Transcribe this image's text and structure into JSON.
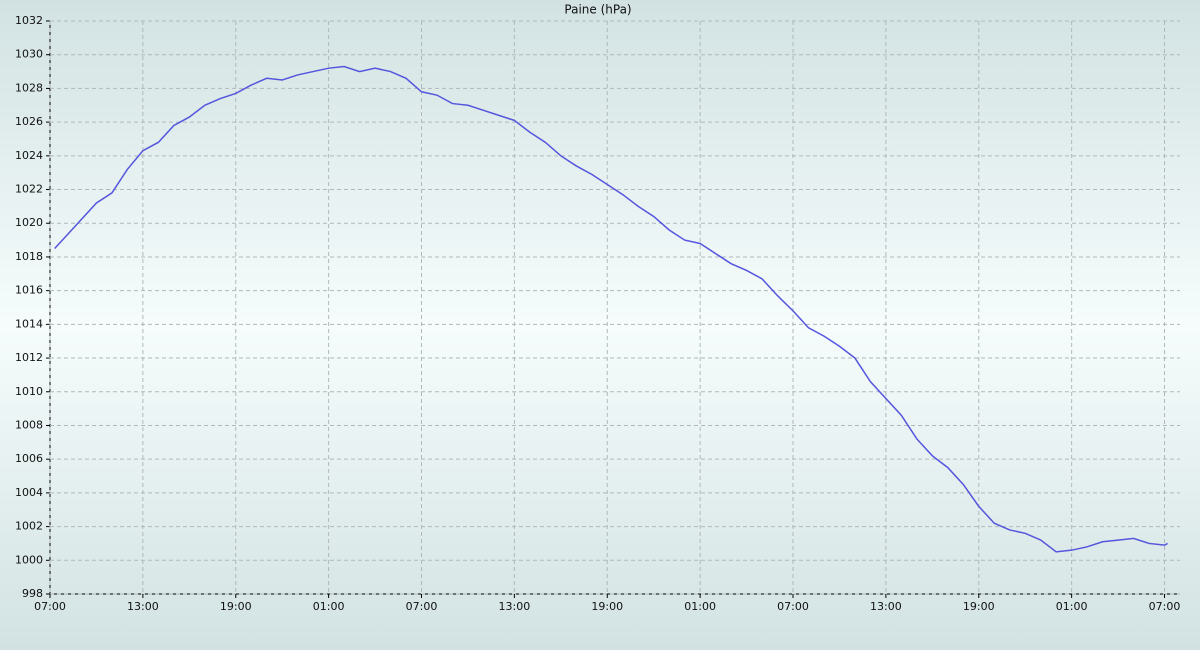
{
  "chart_data": {
    "type": "line",
    "title": "Paine (hPa)",
    "x": [
      0.3,
      1,
      2,
      3,
      4,
      5,
      6,
      7,
      8,
      9,
      10,
      11,
      12,
      13,
      14,
      15,
      16,
      17,
      18,
      19,
      20,
      21,
      22,
      23,
      24,
      25,
      26,
      27,
      28,
      29,
      30,
      31,
      32,
      33,
      34,
      35,
      36,
      37,
      38,
      39,
      40,
      41,
      42,
      43,
      44,
      45,
      46,
      47,
      48,
      49,
      50,
      51,
      52,
      53,
      54,
      55,
      56,
      57,
      58,
      59,
      60,
      61,
      62,
      63,
      64,
      65,
      66,
      67,
      68,
      69,
      70,
      71,
      72,
      72.2
    ],
    "series": [
      {
        "color": "#5555dd",
        "values": [
          1018.5,
          1019.2,
          1020.2,
          1021.2,
          1021.8,
          1023.2,
          1024.3,
          1024.8,
          1025.8,
          1026.3,
          1027.0,
          1027.4,
          1027.7,
          1028.2,
          1028.6,
          1028.5,
          1028.8,
          1029.0,
          1029.2,
          1029.3,
          1029.0,
          1029.2,
          1029.0,
          1028.6,
          1027.8,
          1027.6,
          1027.1,
          1027.0,
          1026.7,
          1026.4,
          1026.1,
          1025.4,
          1024.8,
          1024.0,
          1023.4,
          1022.9,
          1022.3,
          1021.7,
          1021.0,
          1020.4,
          1019.6,
          1019.0,
          1018.8,
          1018.2,
          1017.6,
          1017.2,
          1016.7,
          1015.7,
          1014.8,
          1013.8,
          1013.3,
          1012.7,
          1012.0,
          1010.6,
          1009.6,
          1008.6,
          1007.2,
          1006.2,
          1005.5,
          1004.5,
          1003.2,
          1002.2,
          1001.8,
          1001.6,
          1001.2,
          1000.5,
          1000.6,
          1000.8,
          1001.1,
          1001.2,
          1001.3,
          1001.0,
          1000.9,
          1001.0
        ]
      }
    ],
    "xlim": [
      0,
      73
    ],
    "xticks": [
      {
        "value": 0,
        "label": "07:00"
      },
      {
        "value": 6,
        "label": "13:00"
      },
      {
        "value": 12,
        "label": "19:00"
      },
      {
        "value": 18,
        "label": "01:00"
      },
      {
        "value": 24,
        "label": "07:00"
      },
      {
        "value": 30,
        "label": "13:00"
      },
      {
        "value": 36,
        "label": "19:00"
      },
      {
        "value": 42,
        "label": "01:00"
      },
      {
        "value": 48,
        "label": "07:00"
      },
      {
        "value": 54,
        "label": "13:00"
      },
      {
        "value": 60,
        "label": "19:00"
      },
      {
        "value": 66,
        "label": "01:00"
      },
      {
        "value": 72,
        "label": "07:00"
      }
    ],
    "ylim": [
      998,
      1032
    ],
    "yticks": [
      998,
      1000,
      1002,
      1004,
      1006,
      1008,
      1010,
      1012,
      1014,
      1016,
      1018,
      1020,
      1022,
      1024,
      1026,
      1028,
      1030,
      1032
    ],
    "grid": true
  }
}
